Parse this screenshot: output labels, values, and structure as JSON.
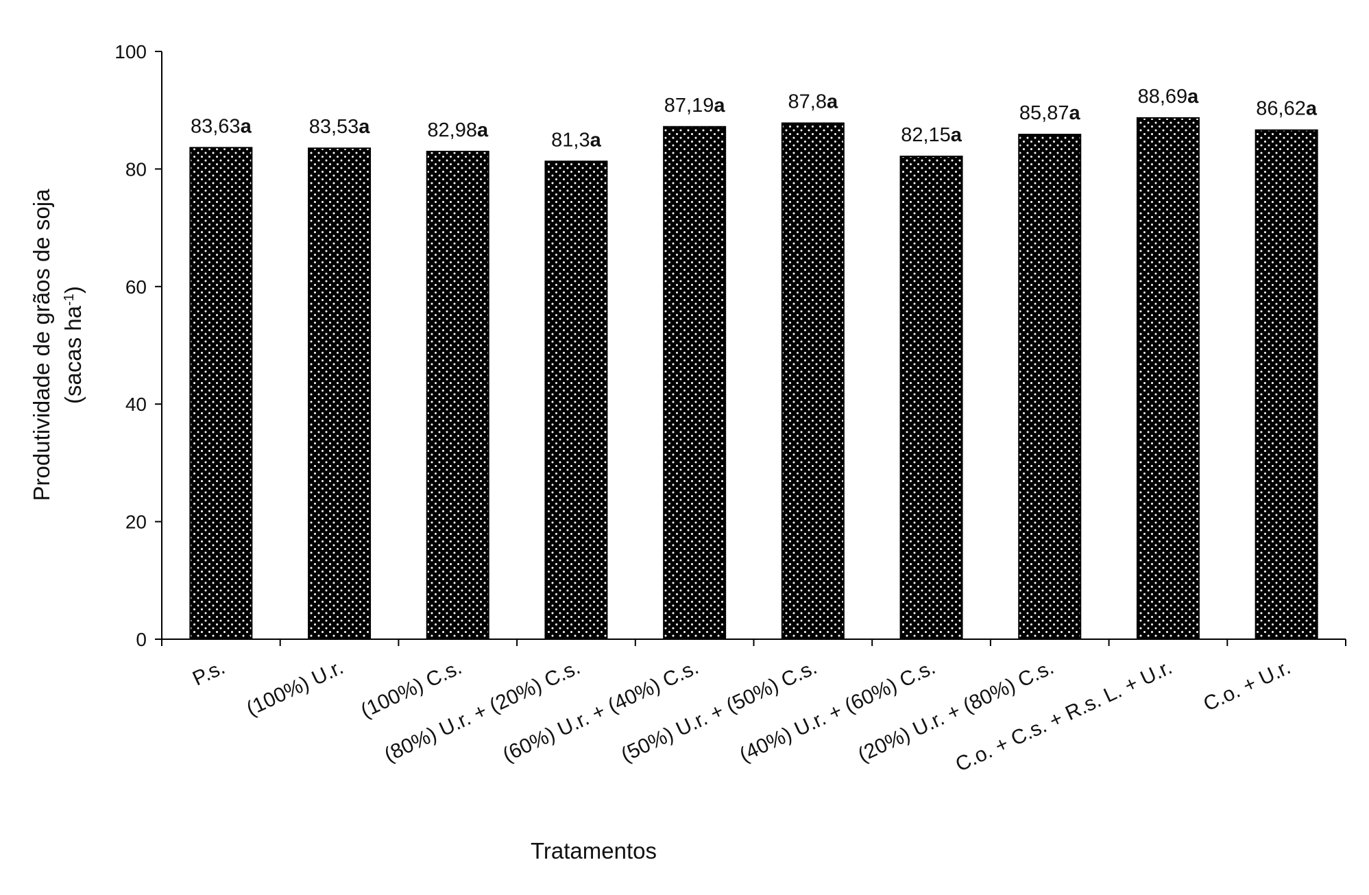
{
  "chart_data": {
    "type": "bar",
    "xlabel": "Tratamentos",
    "ylabel_line1": "Produtividade de grãos de soja",
    "ylabel_line2_prefix": "(sacas ha",
    "ylabel_line2_sup": "-1",
    "ylabel_line2_suffix": ")",
    "ylim": [
      0,
      100
    ],
    "yticks": [
      0,
      20,
      40,
      60,
      80,
      100
    ],
    "grid": false,
    "legend": "none",
    "categories": [
      "P.s.",
      "(100%) U.r.",
      "(100%) C.s.",
      "(80%) U.r. + (20%) C.s.",
      "(60%) U.r. + (40%) C.s.",
      "(50%) U.r. + (50%) C.s.",
      "(40%) U.r. + (60%) C.s.",
      "(20%) U.r. + (80%) C.s.",
      "C.o. + C.s. + R.s. L. + U.r.",
      "C.o. + U.r."
    ],
    "values": [
      83.63,
      83.53,
      82.98,
      81.3,
      87.19,
      87.8,
      82.15,
      85.87,
      88.69,
      86.62
    ],
    "value_labels": [
      "83,63",
      "83,53",
      "82,98",
      "81,3",
      "87,19",
      "87,8",
      "82,15",
      "85,87",
      "88,69",
      "86,62"
    ],
    "significance_letters": [
      "a",
      "a",
      "a",
      "a",
      "a",
      "a",
      "a",
      "a",
      "a",
      "a"
    ],
    "bar_fill": "#000000",
    "bar_pattern": "white-dots"
  }
}
